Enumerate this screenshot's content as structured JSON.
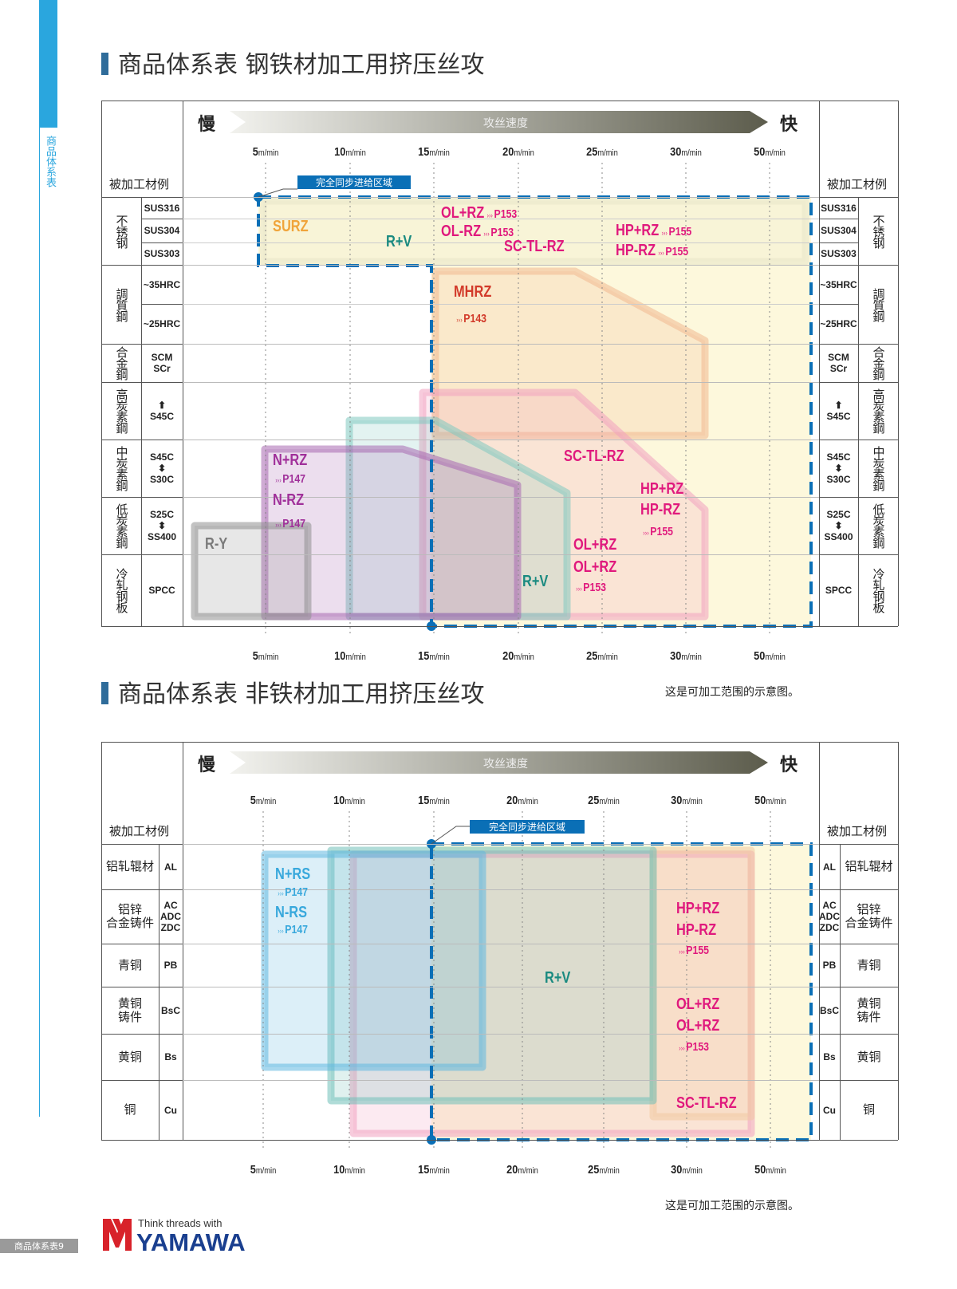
{
  "sidebar": {
    "section_label": "商品体系表"
  },
  "page_label": "商品体系表9",
  "logo": {
    "tagline": "Think threads with",
    "brand": "YAMAWA"
  },
  "colors": {
    "pink": "#e0197d",
    "teal": "#1a8a80",
    "red": "#d23a2a",
    "orange": "#f0a43a",
    "purple": "#a0309a",
    "gray": "#7a7a7a",
    "blue": "#38a8dc",
    "sync": "#0a6fb6"
  },
  "charts": [
    {
      "title": "商品体系表  钢铁材加工用挤压丝攻",
      "slow": "慢",
      "fast": "快",
      "axis_label": "攻丝速度",
      "material_header": "被加工材例",
      "sync_zone_label": "完全同步进给区域",
      "speed_unit": "m/min",
      "speeds": [
        "5",
        "10",
        "15",
        "20",
        "25",
        "30",
        "50"
      ],
      "note": "这是可加工范围的示意图。",
      "groups": [
        {
          "name": "不锈钢",
          "rows": [
            "SUS316",
            "SUS304",
            "SUS303"
          ]
        },
        {
          "name": "調質鋼",
          "rows": [
            "~35HRC",
            "~25HRC"
          ]
        },
        {
          "name": "合金鋼",
          "rows": [
            "SCM\nSCr"
          ]
        },
        {
          "name": "高炭素鋼",
          "rows": [
            "⬆\nS45C"
          ]
        },
        {
          "name": "中炭素鋼",
          "rows": [
            "S45C\n⬍\nS30C"
          ]
        },
        {
          "name": "低炭素鋼",
          "rows": [
            "S25C\n⬍\nSS400"
          ]
        },
        {
          "name": "冷轧钢板",
          "rows": [
            "SPCC"
          ]
        }
      ],
      "labels": [
        {
          "name": "SURZ",
          "color": "orange"
        },
        {
          "name": "R+V",
          "color": "teal"
        },
        {
          "name": "OL+RZ",
          "ref": "P153",
          "color": "pink"
        },
        {
          "name": "OL-RZ",
          "ref": "P153",
          "color": "pink"
        },
        {
          "name": "SC-TL-RZ",
          "color": "pink"
        },
        {
          "name": "HP+RZ",
          "ref": "P155",
          "color": "pink"
        },
        {
          "name": "HP-RZ",
          "ref": "P155",
          "color": "pink"
        },
        {
          "name": "MHRZ",
          "color": "red"
        },
        {
          "ref": "P143",
          "color": "red"
        },
        {
          "name": "SC-TL-RZ",
          "color": "pink"
        },
        {
          "name": "HP+RZ",
          "color": "pink"
        },
        {
          "name": "HP-RZ",
          "color": "pink"
        },
        {
          "ref": "P155",
          "color": "pink"
        },
        {
          "name": "OL+RZ",
          "color": "pink"
        },
        {
          "name": "OL+RZ",
          "color": "pink"
        },
        {
          "ref": "P153",
          "color": "pink"
        },
        {
          "name": "R+V",
          "color": "teal"
        },
        {
          "name": "N+RZ",
          "color": "purple"
        },
        {
          "ref": "P147",
          "color": "purple"
        },
        {
          "name": "N-RZ",
          "color": "purple"
        },
        {
          "ref": "P147",
          "color": "purple"
        },
        {
          "name": "R-Y",
          "color": "gray"
        }
      ]
    },
    {
      "title": "商品体系表  非铁材加工用挤压丝攻",
      "slow": "慢",
      "fast": "快",
      "axis_label": "攻丝速度",
      "material_header": "被加工材例",
      "sync_zone_label": "完全同步进给区域",
      "speed_unit": "m/min",
      "speeds": [
        "5",
        "10",
        "15",
        "20",
        "25",
        "30",
        "50"
      ],
      "note": "这是可加工范围的示意图。",
      "groups": [
        {
          "name": "铝轧辊材",
          "rows": [
            "AL"
          ]
        },
        {
          "name": "铝锌\n合金铸件",
          "rows": [
            "AC\nADC\nZDC"
          ]
        },
        {
          "name": "青铜",
          "rows": [
            "PB"
          ]
        },
        {
          "name": "黄铜\n铸件",
          "rows": [
            "BsC"
          ]
        },
        {
          "name": "黄铜",
          "rows": [
            "Bs"
          ]
        },
        {
          "name": "铜",
          "rows": [
            "Cu"
          ]
        }
      ],
      "labels": [
        {
          "name": "N+RS",
          "color": "blue"
        },
        {
          "ref": "P147",
          "color": "blue"
        },
        {
          "name": "N-RS",
          "color": "blue"
        },
        {
          "ref": "P147",
          "color": "blue"
        },
        {
          "name": "R+V",
          "color": "teal"
        },
        {
          "name": "HP+RZ",
          "color": "pink"
        },
        {
          "name": "HP-RZ",
          "color": "pink"
        },
        {
          "ref": "P155",
          "color": "pink"
        },
        {
          "name": "OL+RZ",
          "color": "pink"
        },
        {
          "name": "OL+RZ",
          "color": "pink"
        },
        {
          "ref": "P153",
          "color": "pink"
        },
        {
          "name": "SC-TL-RZ",
          "color": "pink"
        }
      ]
    }
  ]
}
